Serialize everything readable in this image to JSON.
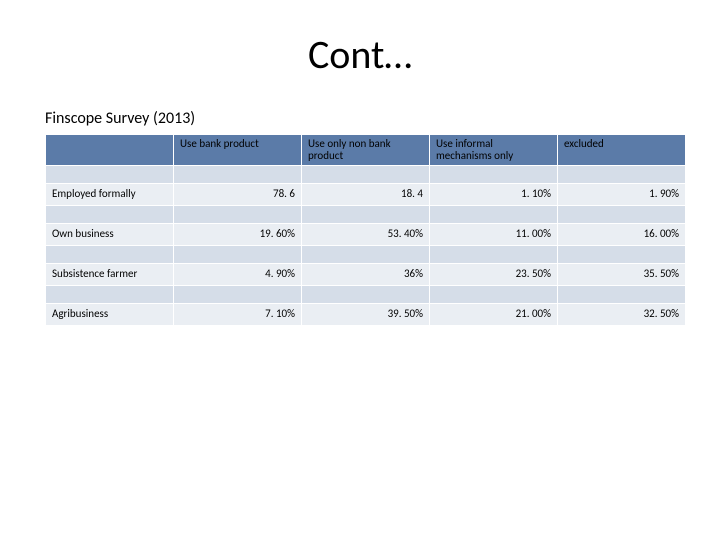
{
  "title": "Cont…",
  "subtitle": "Finscope Survey (2013)",
  "table": {
    "columns": [
      "",
      "Use bank product",
      "Use only non bank product",
      "Use informal mechanisms only",
      "excluded"
    ],
    "rows": [
      {
        "label": "Employed formally",
        "cells": [
          "78. 6",
          "18. 4",
          "1. 10%",
          "1. 90%"
        ]
      },
      {
        "label": "Own business",
        "cells": [
          "19. 60%",
          "53. 40%",
          "11. 00%",
          "16. 00%"
        ]
      },
      {
        "label": "Subsistence farmer",
        "cells": [
          "4. 90%",
          "36%",
          "23. 50%",
          "35. 50%"
        ]
      },
      {
        "label": "Agribusiness",
        "cells": [
          "7. 10%",
          "39. 50%",
          "21. 00%",
          "32. 50%"
        ]
      }
    ],
    "header_bg": "#5b7ba8",
    "band_light": "#eaeef3",
    "band_dark": "#d5dde8"
  }
}
